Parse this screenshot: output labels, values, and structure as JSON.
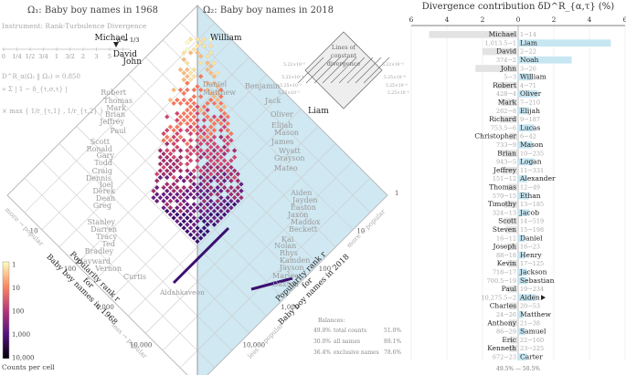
{
  "left_panel": {
    "title_left": "Ω₁: Baby boy names in 1968",
    "title_right": "Ω₂: Baby boy names in 2018",
    "instrument": "Instrument: Rank-Turbulence Divergence",
    "alpha_ticks": [
      "0",
      "1/4",
      "1/2",
      "3/4",
      "1",
      "3/2",
      "2",
      "3",
      "5",
      "∞"
    ],
    "alpha_value": "α = 1/3",
    "formula_lines": [
      "D^R_α(Ω₁ ‖ Ω₂) = 0.850",
      "∝ Σ | 1 − δ_{τ,σ,τ} |",
      "× max { 1/r_{τ,1} , 1/r_{τ,2} }"
    ],
    "lines_label": [
      "Lines of",
      "constant",
      "divergence"
    ],
    "diamond_values_left": [
      "5.22×10⁻⁵",
      "5.25×10⁻⁴",
      "5.25×10⁻³",
      "5.25×10⁻²"
    ],
    "diamond_values_right": [
      "5.22×10⁻⁵",
      "5.25×10⁻⁴",
      "5.25×10⁻³",
      "5.25×10⁻²"
    ],
    "axis_left_label": [
      "Popularity rank r",
      "for",
      "Baby boy names in 1968"
    ],
    "axis_right_label": [
      "Popularity rank r",
      "for",
      "Baby boy names in 2018"
    ],
    "axis_ticks": [
      "1",
      "10",
      "100",
      "1,000",
      "10,000",
      "100,000"
    ],
    "more_popular": "more → popular",
    "less_popular": "less → popular",
    "names_1968": [
      "Michael",
      "David",
      "John",
      "Robert",
      "Thomas",
      "Mark",
      "Brian",
      "Jeffrey",
      "Paul",
      "Scott",
      "Ronald",
      "Gary",
      "Todd",
      "Craig",
      "Dennis",
      "Joel",
      "Derek",
      "Dean",
      "Greg",
      "Stanley",
      "Darren",
      "Tracy",
      "Ted",
      "Bradley",
      "Hayward",
      "Vernon",
      "Curtis"
    ],
    "names_2018": [
      "William",
      "Daniel",
      "Matthew",
      "Benjamin",
      "Jack",
      "Oliver",
      "Elijah",
      "Mason",
      "James",
      "Wyatt",
      "Grayson",
      "Mateo",
      "Aiden",
      "Jayden",
      "Easton",
      "Jaxon",
      "Maddox",
      "Beckett",
      "Kai",
      "Nolan",
      "Rhys",
      "Kamden",
      "Jayson",
      "Marlee",
      "Daxton"
    ],
    "liam_label": "Liam",
    "aldahkaveon_label": "Aldahkaveon",
    "colorbar_ticks": [
      "1",
      "10",
      "100",
      "1,000",
      "10,000"
    ],
    "colorbar_label": "Counts per cell",
    "balances_title": "Balances:",
    "balances": [
      {
        "left": "49.0%",
        "label": "total counts",
        "right": "51.0%"
      },
      {
        "left": "30.0%",
        "label": "all names",
        "right": "89.1%"
      },
      {
        "left": "36.4%",
        "label": "exclusive names",
        "right": "78.6%"
      }
    ]
  },
  "right_panel": {
    "title": "Divergence contribution δD^R_{α,τ} (%)",
    "x_ticks": [
      "6",
      "4",
      "2",
      "0",
      "2",
      "4",
      "6"
    ],
    "footer": "49.5% — 50.5%"
  },
  "chart_data": {
    "type": "bar",
    "title": "Divergence contribution δD^R_{α,τ} (%)",
    "xlim": [
      -6,
      6
    ],
    "names": [
      "Michael",
      "Liam",
      "David",
      "Noah",
      "John",
      "William",
      "Robert",
      "Oliver",
      "Mark",
      "Elijah",
      "Richard",
      "Lucas",
      "Christopher",
      "Mason",
      "Brian",
      "Logan",
      "Jeffrey",
      "Alexander",
      "Thomas",
      "Ethan",
      "Timothy",
      "Jacob",
      "Scott",
      "Steven",
      "Daniel",
      "Joseph",
      "Henry",
      "Kevin",
      "Jackson",
      "Sebastian",
      "Paul",
      "Aiden",
      "Charles",
      "Matthew",
      "Anthony",
      "Samuel",
      "Eric",
      "Kenneth",
      "Carter"
    ],
    "rank_labels": [
      "1⇀14",
      "1,013.5⇀1",
      "2⇀22",
      "374⇀2",
      "3⇀26",
      "5⇀3",
      "4⇀71",
      "428⇀4",
      "7⇀210",
      "262⇀8",
      "9⇀187",
      "753.5⇀6",
      "6⇀42",
      "733⇀9",
      "10⇀235",
      "943⇀5",
      "11⇀331",
      "151⇀12",
      "12⇀49",
      "570⇀15",
      "13⇀185",
      "324⇀13",
      "14⇀519",
      "15⇀198",
      "16⇀12",
      "16⇀23",
      "88⇀18",
      "17⇀125",
      "718⇀17",
      "700.5⇀19",
      "19⇀234",
      "10,275.5⇀2",
      "20⇀53",
      "24⇀26",
      "21⇀38",
      "86⇀29",
      "22⇀160",
      "23⇀225",
      "672⇀23"
    ],
    "values": [
      -5.0,
      5.2,
      -2.0,
      3.0,
      -2.4,
      0.8,
      -1.2,
      1.1,
      -1.0,
      0.6,
      -1.0,
      0.9,
      -0.5,
      0.8,
      -0.9,
      0.9,
      -0.9,
      0.5,
      -0.6,
      0.6,
      -0.8,
      0.6,
      -0.8,
      -0.7,
      0.4,
      -0.6,
      0.4,
      -0.6,
      0.5,
      0.5,
      -0.6,
      1.0,
      -0.5,
      0.3,
      -0.5,
      0.4,
      -0.5,
      -0.5,
      0.5
    ],
    "arrows": [
      false,
      false,
      false,
      false,
      false,
      false,
      false,
      false,
      false,
      false,
      false,
      false,
      false,
      false,
      false,
      false,
      false,
      false,
      false,
      false,
      false,
      false,
      false,
      false,
      false,
      false,
      false,
      false,
      false,
      false,
      false,
      true,
      false,
      false,
      false,
      false,
      false,
      false,
      false
    ]
  }
}
